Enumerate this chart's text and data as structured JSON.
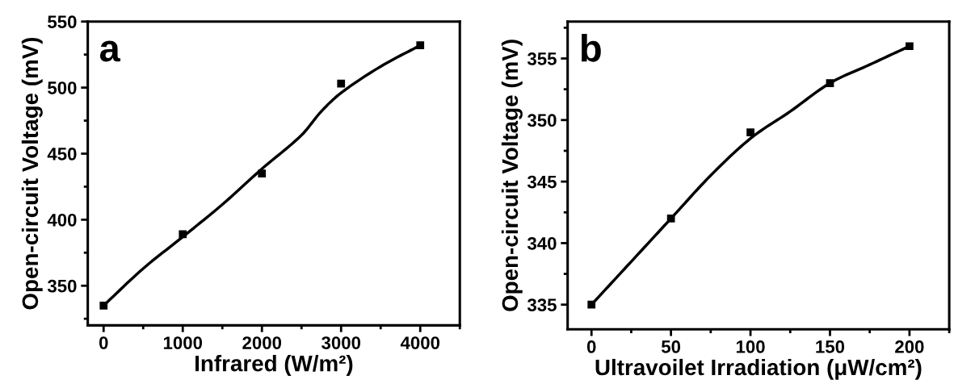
{
  "chart_data": [
    {
      "type": "scatter",
      "xlabel": "Infrared (W/m²)",
      "ylabel": "Open-circuit Voltage (mV)",
      "annotations": [
        "a"
      ],
      "grid": false,
      "x": [
        0,
        1000,
        2000,
        3000,
        4000
      ],
      "xlim": [
        -200,
        4500
      ],
      "xticks": [
        0,
        1000,
        2000,
        3000,
        4000
      ],
      "ylim": [
        320,
        550
      ],
      "yticks": [
        350,
        400,
        450,
        500,
        550
      ],
      "series": [
        {
          "color": "#000000",
          "marker": "square",
          "values": [
            335,
            389,
            435,
            503,
            532
          ]
        },
        {
          "type": "line",
          "color": "#000000",
          "marker": "none",
          "x": [
            0,
            500,
            1000,
            1500,
            2000,
            2500,
            2750,
            3000,
            3500,
            4000
          ],
          "values": [
            335,
            363,
            387,
            411.5,
            438.5,
            464,
            482,
            496,
            516,
            532
          ]
        }
      ]
    },
    {
      "type": "scatter",
      "xlabel": "Ultravoilet Irradiation (μW/cm²)",
      "ylabel": "Open-circuit Voltage (mV)",
      "annotations": [
        "b"
      ],
      "grid": false,
      "x": [
        0,
        50,
        100,
        150,
        200
      ],
      "xlim": [
        -15,
        225
      ],
      "xticks": [
        0,
        50,
        100,
        150,
        200
      ],
      "ylim": [
        333,
        358
      ],
      "yticks": [
        335,
        340,
        345,
        350,
        355
      ],
      "series": [
        {
          "color": "#000000",
          "marker": "square",
          "values": [
            335,
            342,
            349,
            353,
            356
          ]
        },
        {
          "type": "line",
          "color": "#000000",
          "marker": "none",
          "x": [
            0,
            25,
            50,
            75,
            100,
            125,
            150,
            175,
            200
          ],
          "values": [
            335,
            338.5,
            342,
            345.5,
            348.5,
            350.7,
            353,
            354.5,
            356
          ]
        }
      ]
    }
  ]
}
